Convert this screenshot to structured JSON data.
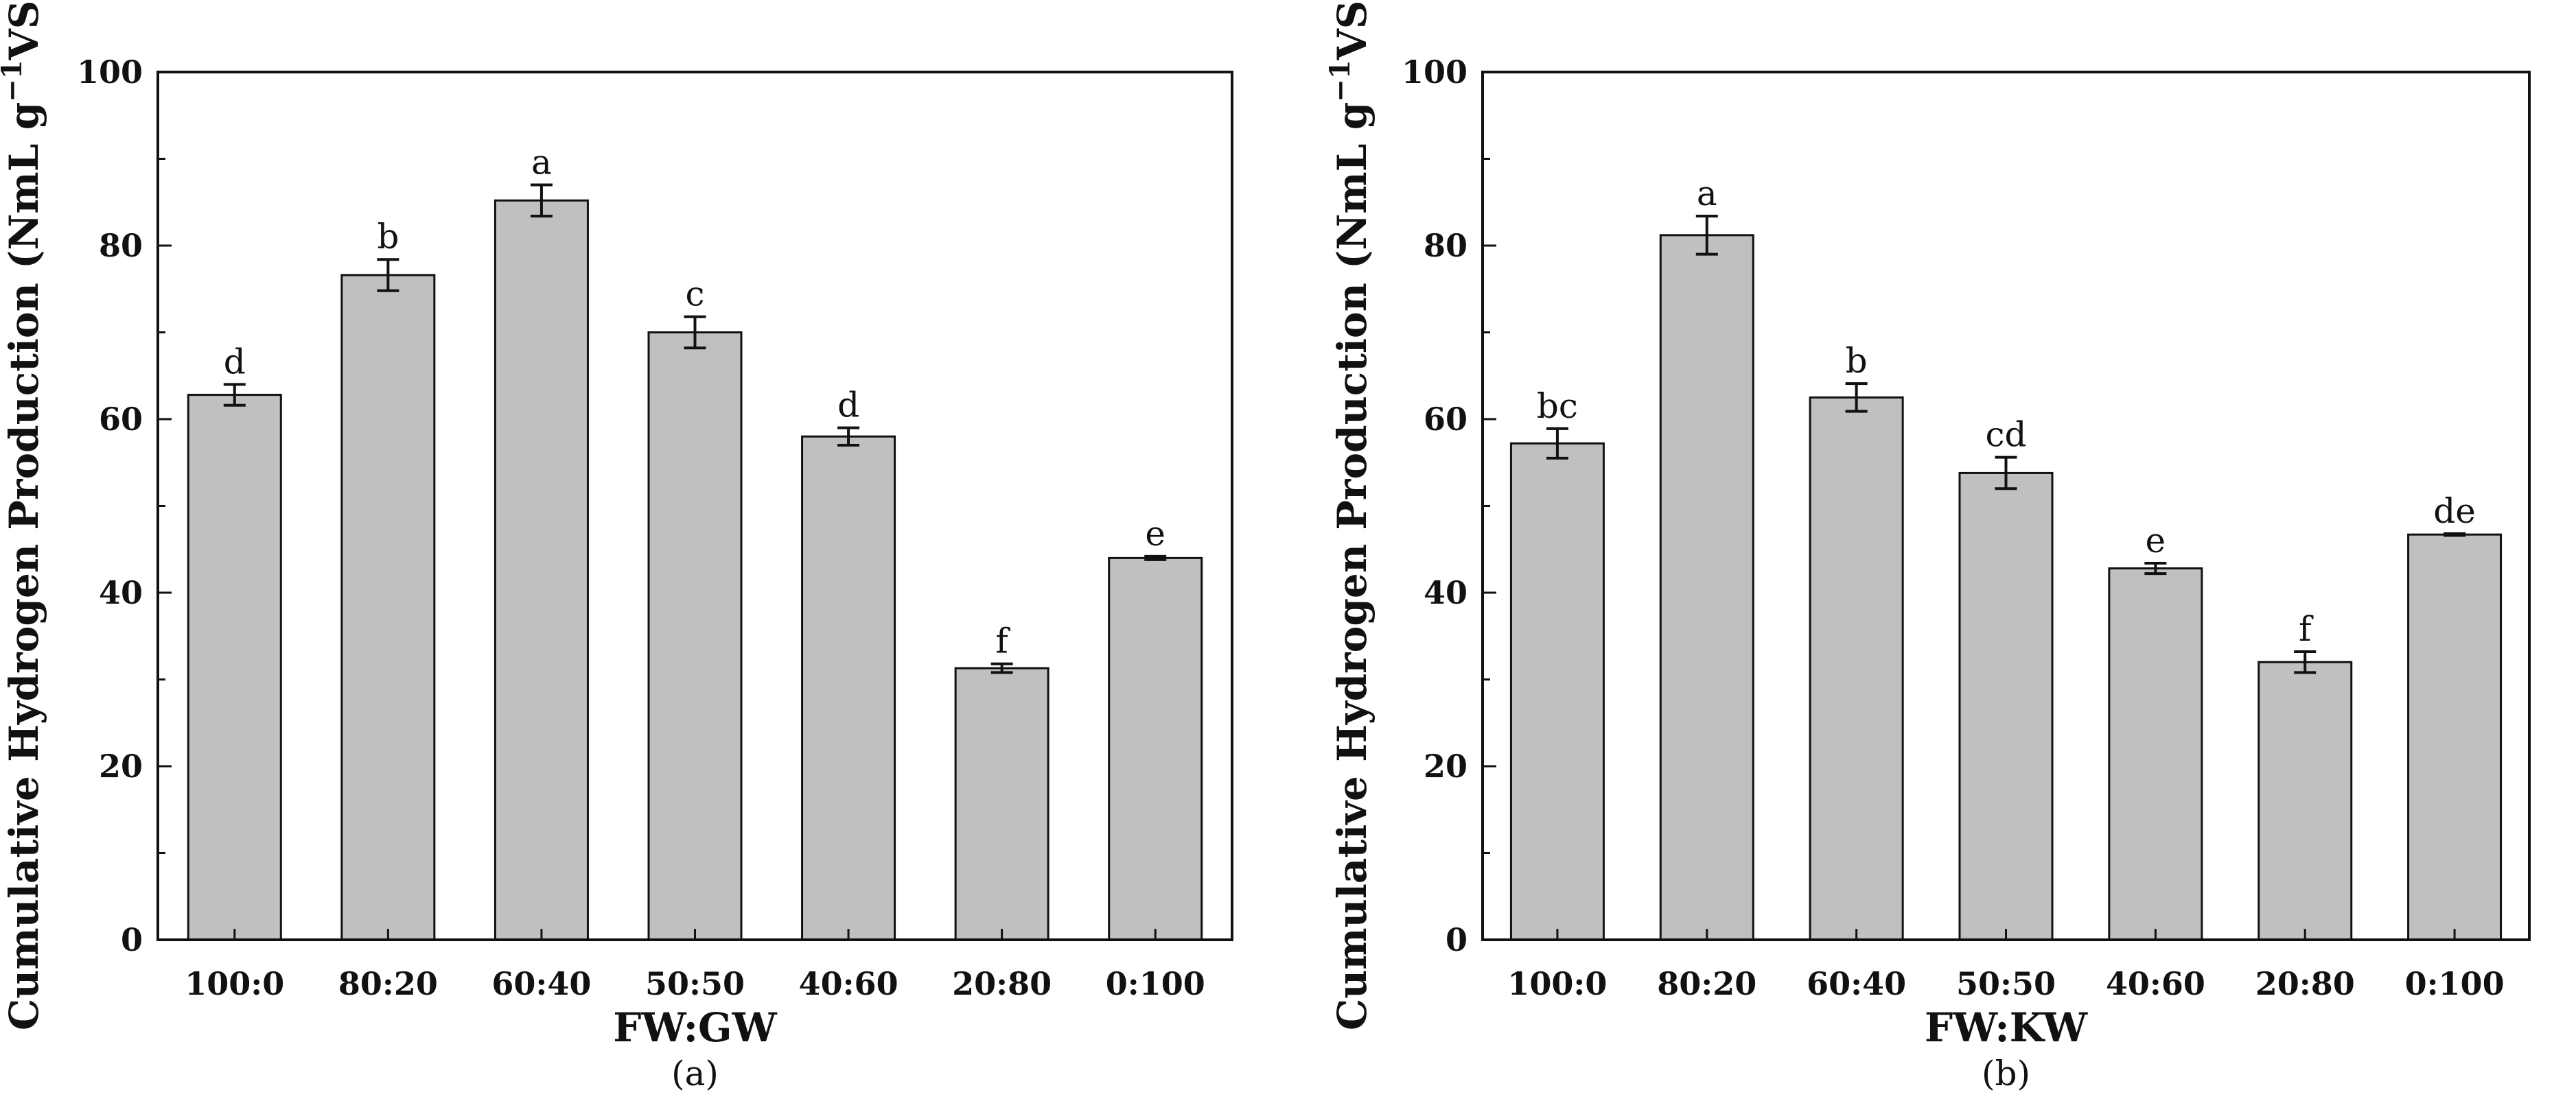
{
  "colors": {
    "bar_fill": "#c0c0c0",
    "bar_stroke": "#111111",
    "axis": "#111111",
    "background": "#ffffff"
  },
  "chart_data": [
    {
      "type": "bar",
      "panel_label": "(a)",
      "xlabel": "FW:GW",
      "ylabel_main": "Cumulative Hydrogen Production (NmL g",
      "ylabel_sup": "−1",
      "ylabel_end": "VS)",
      "ylim": [
        0,
        100
      ],
      "yticks": [
        0,
        20,
        40,
        60,
        80,
        100
      ],
      "categories": [
        "100:0",
        "80:20",
        "60:40",
        "50:50",
        "40:60",
        "20:80",
        "0:100"
      ],
      "values": [
        62.8,
        76.6,
        85.2,
        70.0,
        58.0,
        31.3,
        44.0
      ],
      "errors": [
        1.2,
        1.8,
        1.8,
        1.8,
        1.0,
        0.5,
        0.2
      ],
      "significance": [
        "d",
        "b",
        "a",
        "c",
        "d",
        "f",
        "e"
      ],
      "grid": false
    },
    {
      "type": "bar",
      "panel_label": "(b)",
      "xlabel": "FW:KW",
      "ylabel_main": "Cumulative Hydrogen Production (NmL g",
      "ylabel_sup": "−1",
      "ylabel_end": "VS)",
      "ylim": [
        0,
        100
      ],
      "yticks": [
        0,
        20,
        40,
        60,
        80,
        100
      ],
      "categories": [
        "100:0",
        "80:20",
        "60:40",
        "50:50",
        "40:60",
        "20:80",
        "0:100"
      ],
      "values": [
        57.2,
        81.2,
        62.5,
        53.8,
        42.8,
        32.0,
        46.7
      ],
      "errors": [
        1.7,
        2.2,
        1.6,
        1.8,
        0.6,
        1.2,
        0.1
      ],
      "significance": [
        "bc",
        "a",
        "b",
        "cd",
        "e",
        "f",
        "de"
      ],
      "grid": false
    }
  ]
}
